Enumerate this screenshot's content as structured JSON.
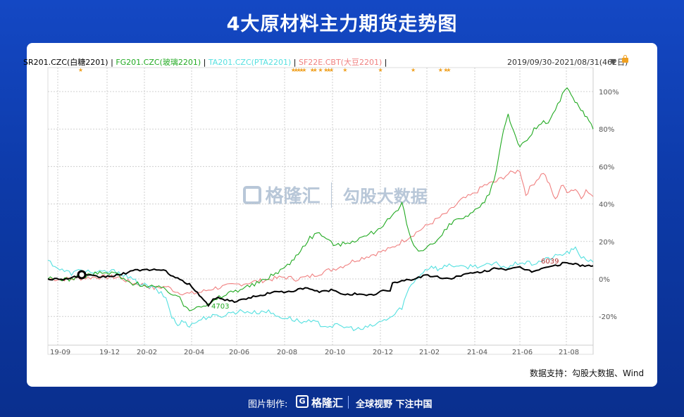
{
  "title": "4大原材料主力期货走势图",
  "legend": {
    "sr": "SR201.CZC(白糖2201)",
    "fg": "FG201.CZC(玻璃2201)",
    "ta": "TA201.CZC(PTA2201)",
    "sf": "SF22E.CBT(大豆2201)",
    "sep": "|"
  },
  "date_range": "2019/09/30-2021/08/31(462日)",
  "source": "数据支持：勾股大数据、Wind",
  "watermark": {
    "brand": "格隆汇",
    "brand_url": "www.gelonghui.com",
    "data": "勾股大数据",
    "data_url": "www.gogudata.com"
  },
  "footer": {
    "made_by": "图片制作:",
    "brand": "格隆汇",
    "slogan": "全球视野 下注中国"
  },
  "colors": {
    "sr": "#000000",
    "fg": "#22aa22",
    "ta": "#55e0e0",
    "sf": "#f08080",
    "star": "#f0a020",
    "anno_min": "#22aa22",
    "anno_max": "#b03030"
  },
  "chart_data": {
    "type": "line",
    "x_ticks": [
      "19-09",
      "19-12",
      "20-02",
      "20-04",
      "20-06",
      "20-08",
      "20-10",
      "20-12",
      "21-02",
      "21-04",
      "21-06",
      "21-08"
    ],
    "y_ticks": [
      "100%",
      "80%",
      "60%",
      "40%",
      "20%",
      "0%",
      "-20%"
    ],
    "ylim": [
      -0.3,
      1.1
    ],
    "grid": true,
    "annotations": [
      {
        "label": "4703",
        "series": "FG201.CZC"
      },
      {
        "label": "6039",
        "series": "SR201.CZC"
      }
    ],
    "series": [
      {
        "name": "SR201.CZC(白糖2201)",
        "key": "sr",
        "points": [
          [
            0,
            0.0
          ],
          [
            15,
            0.0
          ],
          [
            30,
            0.02
          ],
          [
            45,
            0.01
          ],
          [
            60,
            0.02
          ],
          [
            70,
            0.04
          ],
          [
            80,
            0.05
          ],
          [
            90,
            0.05
          ],
          [
            100,
            0.04
          ],
          [
            110,
            0.0
          ],
          [
            120,
            -0.03
          ],
          [
            125,
            -0.06
          ],
          [
            130,
            -0.1
          ],
          [
            136,
            -0.14
          ],
          [
            142,
            -0.1
          ],
          [
            150,
            -0.11
          ],
          [
            160,
            -0.12
          ],
          [
            170,
            -0.1
          ],
          [
            180,
            -0.09
          ],
          [
            190,
            -0.07
          ],
          [
            200,
            -0.07
          ],
          [
            210,
            -0.06
          ],
          [
            220,
            -0.05
          ],
          [
            230,
            -0.07
          ],
          [
            240,
            -0.06
          ],
          [
            250,
            -0.08
          ],
          [
            260,
            -0.08
          ],
          [
            270,
            -0.09
          ],
          [
            278,
            -0.08
          ],
          [
            284,
            -0.06
          ],
          [
            290,
            -0.07
          ],
          [
            292,
            -0.02
          ],
          [
            300,
            -0.01
          ],
          [
            310,
            0.0
          ],
          [
            320,
            0.02
          ],
          [
            330,
            0.01
          ],
          [
            340,
            0.0
          ],
          [
            350,
            0.02
          ],
          [
            360,
            0.03
          ],
          [
            370,
            0.04
          ],
          [
            380,
            0.06
          ],
          [
            390,
            0.05
          ],
          [
            400,
            0.06
          ],
          [
            410,
            0.04
          ],
          [
            420,
            0.06
          ],
          [
            430,
            0.07
          ],
          [
            440,
            0.09
          ],
          [
            445,
            0.08
          ],
          [
            455,
            0.07
          ],
          [
            462,
            0.07
          ]
        ]
      },
      {
        "name": "FG201.CZC(玻璃2201)",
        "key": "fg",
        "points": [
          [
            0,
            0.0
          ],
          [
            20,
            0.0
          ],
          [
            40,
            0.03
          ],
          [
            60,
            0.03
          ],
          [
            62,
            0.0
          ],
          [
            70,
            -0.02
          ],
          [
            80,
            -0.03
          ],
          [
            90,
            -0.04
          ],
          [
            100,
            -0.06
          ],
          [
            110,
            -0.09
          ],
          [
            115,
            -0.14
          ],
          [
            120,
            -0.16
          ],
          [
            128,
            -0.14
          ],
          [
            136,
            -0.14
          ],
          [
            145,
            -0.1
          ],
          [
            155,
            -0.07
          ],
          [
            165,
            -0.05
          ],
          [
            175,
            -0.03
          ],
          [
            185,
            0.0
          ],
          [
            195,
            0.04
          ],
          [
            205,
            0.08
          ],
          [
            212,
            0.14
          ],
          [
            222,
            0.22
          ],
          [
            230,
            0.25
          ],
          [
            238,
            0.2
          ],
          [
            246,
            0.18
          ],
          [
            256,
            0.2
          ],
          [
            266,
            0.22
          ],
          [
            276,
            0.25
          ],
          [
            286,
            0.3
          ],
          [
            295,
            0.35
          ],
          [
            300,
            0.4
          ],
          [
            304,
            0.3
          ],
          [
            308,
            0.2
          ],
          [
            314,
            0.15
          ],
          [
            320,
            0.17
          ],
          [
            330,
            0.2
          ],
          [
            338,
            0.27
          ],
          [
            346,
            0.32
          ],
          [
            356,
            0.33
          ],
          [
            366,
            0.38
          ],
          [
            374,
            0.45
          ],
          [
            380,
            0.58
          ],
          [
            386,
            0.8
          ],
          [
            390,
            0.88
          ],
          [
            395,
            0.78
          ],
          [
            400,
            0.71
          ],
          [
            406,
            0.73
          ],
          [
            412,
            0.8
          ],
          [
            418,
            0.83
          ],
          [
            424,
            0.84
          ],
          [
            430,
            0.9
          ],
          [
            436,
            0.98
          ],
          [
            440,
            1.02
          ],
          [
            445,
            0.96
          ],
          [
            450,
            0.92
          ],
          [
            455,
            0.88
          ],
          [
            462,
            0.8
          ]
        ]
      },
      {
        "name": "TA201.CZC(PTA2201)",
        "key": "ta",
        "points": [
          [
            0,
            0.1
          ],
          [
            10,
            0.05
          ],
          [
            20,
            0.03
          ],
          [
            30,
            0.05
          ],
          [
            40,
            0.03
          ],
          [
            50,
            0.04
          ],
          [
            60,
            0.04
          ],
          [
            70,
            0.0
          ],
          [
            80,
            -0.03
          ],
          [
            90,
            -0.05
          ],
          [
            100,
            -0.1
          ],
          [
            105,
            -0.2
          ],
          [
            110,
            -0.25
          ],
          [
            115,
            -0.22
          ],
          [
            120,
            -0.25
          ],
          [
            128,
            -0.22
          ],
          [
            136,
            -0.2
          ],
          [
            145,
            -0.2
          ],
          [
            155,
            -0.18
          ],
          [
            165,
            -0.17
          ],
          [
            175,
            -0.18
          ],
          [
            185,
            -0.17
          ],
          [
            195,
            -0.2
          ],
          [
            205,
            -0.21
          ],
          [
            215,
            -0.23
          ],
          [
            225,
            -0.23
          ],
          [
            235,
            -0.25
          ],
          [
            245,
            -0.25
          ],
          [
            255,
            -0.26
          ],
          [
            265,
            -0.27
          ],
          [
            275,
            -0.25
          ],
          [
            285,
            -0.22
          ],
          [
            292,
            -0.2
          ],
          [
            300,
            -0.15
          ],
          [
            306,
            -0.05
          ],
          [
            312,
            0.0
          ],
          [
            318,
            0.04
          ],
          [
            325,
            0.07
          ],
          [
            332,
            0.05
          ],
          [
            340,
            0.08
          ],
          [
            350,
            0.06
          ],
          [
            360,
            0.07
          ],
          [
            370,
            0.07
          ],
          [
            380,
            0.08
          ],
          [
            390,
            0.06
          ],
          [
            400,
            0.09
          ],
          [
            410,
            0.08
          ],
          [
            420,
            0.1
          ],
          [
            430,
            0.12
          ],
          [
            440,
            0.14
          ],
          [
            447,
            0.16
          ],
          [
            452,
            0.12
          ],
          [
            462,
            0.09
          ]
        ]
      },
      {
        "name": "SF22E.CBT(大豆2201)",
        "key": "sf",
        "points": [
          [
            0,
            0.0
          ],
          [
            20,
            0.0
          ],
          [
            40,
            0.01
          ],
          [
            60,
            0.01
          ],
          [
            70,
            -0.02
          ],
          [
            80,
            -0.03
          ],
          [
            90,
            -0.05
          ],
          [
            100,
            -0.04
          ],
          [
            110,
            -0.07
          ],
          [
            120,
            -0.08
          ],
          [
            130,
            -0.07
          ],
          [
            140,
            -0.05
          ],
          [
            150,
            -0.04
          ],
          [
            160,
            -0.03
          ],
          [
            170,
            -0.02
          ],
          [
            180,
            -0.01
          ],
          [
            190,
            0.0
          ],
          [
            200,
            0.01
          ],
          [
            210,
            0.0
          ],
          [
            220,
            0.01
          ],
          [
            230,
            0.03
          ],
          [
            240,
            0.05
          ],
          [
            250,
            0.07
          ],
          [
            260,
            0.1
          ],
          [
            270,
            0.12
          ],
          [
            280,
            0.14
          ],
          [
            290,
            0.16
          ],
          [
            300,
            0.2
          ],
          [
            310,
            0.24
          ],
          [
            320,
            0.28
          ],
          [
            330,
            0.32
          ],
          [
            340,
            0.36
          ],
          [
            350,
            0.42
          ],
          [
            360,
            0.45
          ],
          [
            370,
            0.5
          ],
          [
            380,
            0.52
          ],
          [
            390,
            0.56
          ],
          [
            400,
            0.58
          ],
          [
            405,
            0.45
          ],
          [
            410,
            0.5
          ],
          [
            420,
            0.57
          ],
          [
            425,
            0.5
          ],
          [
            430,
            0.42
          ],
          [
            435,
            0.5
          ],
          [
            440,
            0.47
          ],
          [
            447,
            0.48
          ],
          [
            452,
            0.44
          ],
          [
            456,
            0.47
          ],
          [
            462,
            0.44
          ]
        ]
      }
    ],
    "event_marks": [
      0.06,
      0.45,
      0.455,
      0.46,
      0.465,
      0.47,
      0.485,
      0.49,
      0.5,
      0.51,
      0.515,
      0.52,
      0.545,
      0.61,
      0.67,
      0.72,
      0.73,
      0.735
    ]
  }
}
